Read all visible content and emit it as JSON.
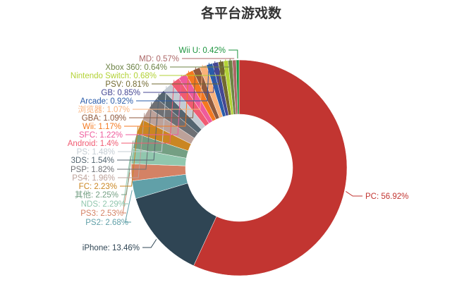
{
  "chart_data": {
    "type": "pie",
    "variant": "donut",
    "title": "各平台游戏数",
    "legend": "none",
    "slices": [
      {
        "name": "PC",
        "value": 56.92,
        "label": "PC: 56.92%",
        "color": "#c23531"
      },
      {
        "name": "iPhone",
        "value": 13.46,
        "label": "iPhone: 13.46%",
        "color": "#2f4554"
      },
      {
        "name": "PS2",
        "value": 2.68,
        "label": "PS2: 2.68%",
        "color": "#61a0a8"
      },
      {
        "name": "PS3",
        "value": 2.53,
        "label": "PS3: 2.53%",
        "color": "#d48265"
      },
      {
        "name": "NDS",
        "value": 2.29,
        "label": "NDS: 2.29%",
        "color": "#91c7ae"
      },
      {
        "name": "其他",
        "value": 2.25,
        "label": "其他: 2.25%",
        "color": "#749f83"
      },
      {
        "name": "FC",
        "value": 2.23,
        "label": "FC: 2.23%",
        "color": "#ca8622"
      },
      {
        "name": "PS4",
        "value": 1.96,
        "label": "PS4: 1.96%",
        "color": "#bda29a"
      },
      {
        "name": "PSP",
        "value": 1.82,
        "label": "PSP: 1.82%",
        "color": "#6e7074"
      },
      {
        "name": "3DS",
        "value": 1.54,
        "label": "3DS: 1.54%",
        "color": "#546570"
      },
      {
        "name": "PS",
        "value": 1.48,
        "label": "PS: 1.48%",
        "color": "#c4ccd3"
      },
      {
        "name": "Android",
        "value": 1.4,
        "label": "Android: 1.4%",
        "color": "#f05b72"
      },
      {
        "name": "SFC",
        "value": 1.22,
        "label": "SFC: 1.22%",
        "color": "#ef5b9c"
      },
      {
        "name": "Wii",
        "value": 1.17,
        "label": "Wii: 1.17%",
        "color": "#f47920"
      },
      {
        "name": "GBA",
        "value": 1.09,
        "label": "GBA: 1.09%",
        "color": "#905a3d"
      },
      {
        "name": "浏览器",
        "value": 1.07,
        "label": "浏览器: 1.07%",
        "color": "#fab27b"
      },
      {
        "name": "Arcade",
        "value": 0.92,
        "label": "Arcade: 0.92%",
        "color": "#2a5caa"
      },
      {
        "name": "GB",
        "value": 0.85,
        "label": "GB: 0.85%",
        "color": "#444693"
      },
      {
        "name": "PSV",
        "value": 0.81,
        "label": "PSV: 0.81%",
        "color": "#726930"
      },
      {
        "name": "Nintendo Switch",
        "value": 0.68,
        "label": "Nintendo Switch: 0.68%",
        "color": "#b2d235"
      },
      {
        "name": "Xbox 360",
        "value": 0.64,
        "label": "Xbox 360: 0.64%",
        "color": "#6d8346"
      },
      {
        "name": "MD",
        "value": 0.57,
        "label": "MD: 0.57%",
        "color": "#ac6767"
      },
      {
        "name": "Wii U",
        "value": 0.42,
        "label": "Wii U: 0.42%",
        "color": "#1d953f"
      }
    ]
  }
}
